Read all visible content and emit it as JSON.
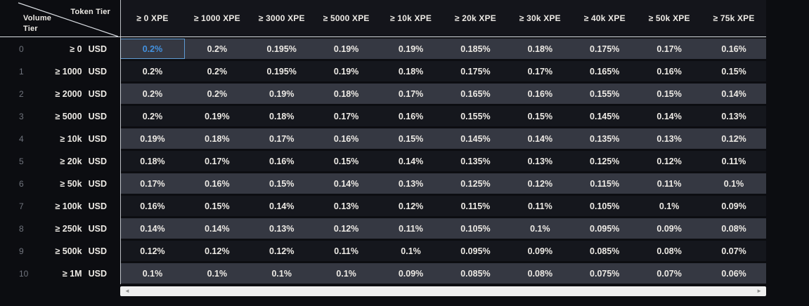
{
  "colors": {
    "page-bg": "#0c0d11",
    "header-bg": "#14151b",
    "panel-line": "#d9dde2",
    "row-light": "#353842",
    "row-dark": "#15171d",
    "text-primary": "#edeae5",
    "tier-number": "#70747d",
    "selected-text": "#4392e0",
    "selected-border": "#5f9bd3",
    "selected-bg": "#1f2630",
    "scrollbar-track": "#efefef",
    "scrollbar-arrow": "#8f8f8f"
  },
  "corner": {
    "token_label": "Token Tier",
    "volume_label_line1": "Volume",
    "volume_label_line2": "Tier"
  },
  "table": {
    "columns": [
      "≥ 0 XPE",
      "≥ 1000 XPE",
      "≥ 3000 XPE",
      "≥ 5000 XPE",
      "≥ 10k XPE",
      "≥ 20k XPE",
      "≥ 30k XPE",
      "≥ 40k XPE",
      "≥ 50k XPE",
      "≥ 75k XPE"
    ],
    "selected_cell": {
      "row_index": 0,
      "col_index": 0
    },
    "rows": [
      {
        "tier": "0",
        "volume": "≥ 0",
        "unit": "USD",
        "values": [
          "0.2%",
          "0.2%",
          "0.195%",
          "0.19%",
          "0.19%",
          "0.185%",
          "0.18%",
          "0.175%",
          "0.17%",
          "0.16%"
        ]
      },
      {
        "tier": "1",
        "volume": "≥ 1000",
        "unit": "USD",
        "values": [
          "0.2%",
          "0.2%",
          "0.195%",
          "0.19%",
          "0.18%",
          "0.175%",
          "0.17%",
          "0.165%",
          "0.16%",
          "0.15%"
        ]
      },
      {
        "tier": "2",
        "volume": "≥ 2000",
        "unit": "USD",
        "values": [
          "0.2%",
          "0.2%",
          "0.19%",
          "0.18%",
          "0.17%",
          "0.165%",
          "0.16%",
          "0.155%",
          "0.15%",
          "0.14%"
        ]
      },
      {
        "tier": "3",
        "volume": "≥ 5000",
        "unit": "USD",
        "values": [
          "0.2%",
          "0.19%",
          "0.18%",
          "0.17%",
          "0.16%",
          "0.155%",
          "0.15%",
          "0.145%",
          "0.14%",
          "0.13%"
        ]
      },
      {
        "tier": "4",
        "volume": "≥ 10k",
        "unit": "USD",
        "values": [
          "0.19%",
          "0.18%",
          "0.17%",
          "0.16%",
          "0.15%",
          "0.145%",
          "0.14%",
          "0.135%",
          "0.13%",
          "0.12%"
        ]
      },
      {
        "tier": "5",
        "volume": "≥ 20k",
        "unit": "USD",
        "values": [
          "0.18%",
          "0.17%",
          "0.16%",
          "0.15%",
          "0.14%",
          "0.135%",
          "0.13%",
          "0.125%",
          "0.12%",
          "0.11%"
        ]
      },
      {
        "tier": "6",
        "volume": "≥ 50k",
        "unit": "USD",
        "values": [
          "0.17%",
          "0.16%",
          "0.15%",
          "0.14%",
          "0.13%",
          "0.125%",
          "0.12%",
          "0.115%",
          "0.11%",
          "0.1%"
        ]
      },
      {
        "tier": "7",
        "volume": "≥ 100k",
        "unit": "USD",
        "values": [
          "0.16%",
          "0.15%",
          "0.14%",
          "0.13%",
          "0.12%",
          "0.115%",
          "0.11%",
          "0.105%",
          "0.1%",
          "0.09%"
        ]
      },
      {
        "tier": "8",
        "volume": "≥ 250k",
        "unit": "USD",
        "values": [
          "0.14%",
          "0.14%",
          "0.13%",
          "0.12%",
          "0.11%",
          "0.105%",
          "0.1%",
          "0.095%",
          "0.09%",
          "0.08%"
        ]
      },
      {
        "tier": "9",
        "volume": "≥ 500k",
        "unit": "USD",
        "values": [
          "0.12%",
          "0.12%",
          "0.12%",
          "0.11%",
          "0.1%",
          "0.095%",
          "0.09%",
          "0.085%",
          "0.08%",
          "0.07%"
        ]
      },
      {
        "tier": "10",
        "volume": "≥ 1M",
        "unit": "USD",
        "values": [
          "0.1%",
          "0.1%",
          "0.1%",
          "0.1%",
          "0.09%",
          "0.085%",
          "0.08%",
          "0.075%",
          "0.07%",
          "0.06%"
        ]
      }
    ]
  },
  "scrollbar": {
    "left_arrow": "◄",
    "right_arrow": "►"
  }
}
